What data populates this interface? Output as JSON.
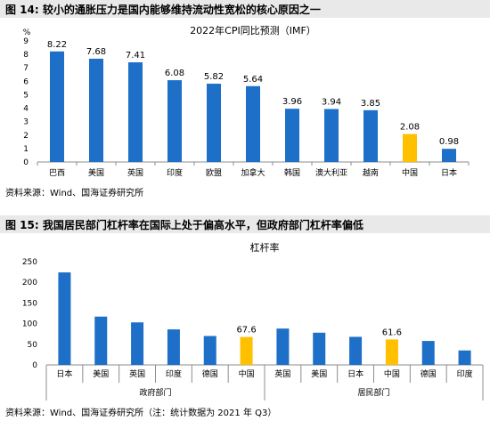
{
  "figure1": {
    "label": "图 14: 较小的通胀压力是国内能够维持流动性宽松的核心原因之一",
    "source": "资料来源：Wind、国海证券研究所"
  },
  "figure2": {
    "label": "图 15: 我国居民部门杠杆率在国际上处于偏高水平，但政府部门杠杆率偏低",
    "source": "资料来源：Wind、国海证券研究所（注：统计数据为 2021 年 Q3）"
  },
  "colors": {
    "primary": "#1e6fc8",
    "highlight": "#ffc000"
  },
  "chart_data": [
    {
      "type": "bar",
      "title": "2022年CPI同比预测（IMF）",
      "ylabel": "%",
      "ylim": [
        0,
        9
      ],
      "yticks": [
        0,
        1,
        2,
        3,
        4,
        5,
        6,
        7,
        8,
        9
      ],
      "categories": [
        "巴西",
        "美国",
        "英国",
        "印度",
        "欧盟",
        "加拿大",
        "韩国",
        "澳大利亚",
        "越南",
        "中国",
        "日本"
      ],
      "values": [
        8.22,
        7.68,
        7.41,
        6.08,
        5.82,
        5.64,
        3.96,
        3.94,
        3.85,
        2.08,
        0.98
      ],
      "value_labels": [
        "8.22",
        "7.68",
        "7.41",
        "6.08",
        "5.82",
        "5.64",
        "3.96",
        "3.94",
        "3.85",
        "2.08",
        "0.98"
      ],
      "highlight_index": 9
    },
    {
      "type": "bar",
      "title": "杠杆率",
      "ylim": [
        0,
        250
      ],
      "yticks": [
        0,
        50,
        100,
        150,
        200,
        250
      ],
      "categories": [
        "日本",
        "美国",
        "英国",
        "印度",
        "德国",
        "中国",
        "英国",
        "美国",
        "日本",
        "中国",
        "德国",
        "印度"
      ],
      "values": [
        224,
        117,
        103,
        86,
        70,
        67.6,
        88,
        78,
        68,
        61.6,
        58,
        35
      ],
      "value_labels": [
        "",
        "",
        "",
        "",
        "",
        "67.6",
        "",
        "",
        "",
        "61.6",
        "",
        ""
      ],
      "highlight_indices": [
        5,
        9
      ],
      "groups": [
        {
          "label": "政府部门",
          "count": 6
        },
        {
          "label": "居民部门",
          "count": 6
        }
      ]
    }
  ]
}
